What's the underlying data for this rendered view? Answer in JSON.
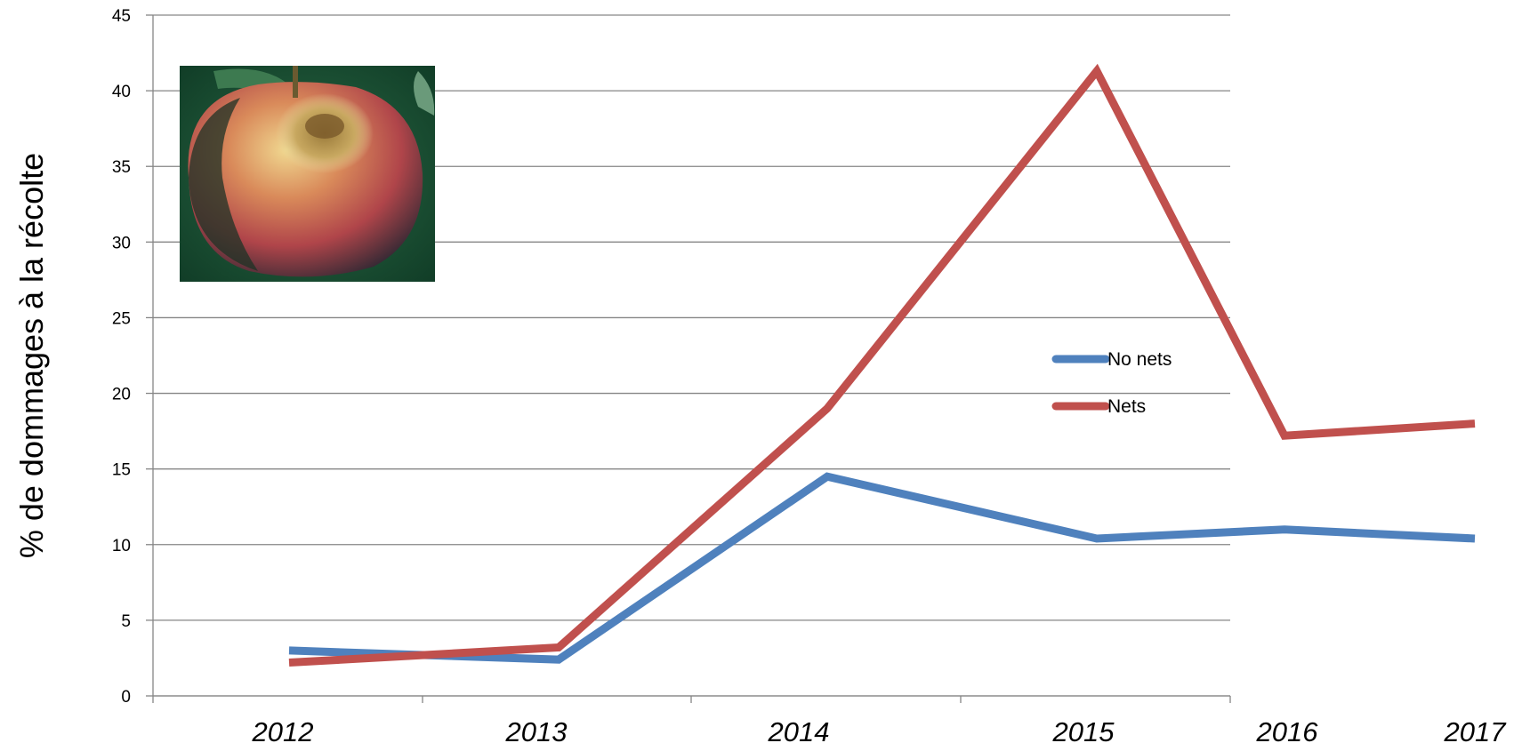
{
  "chart_data": {
    "type": "line",
    "ylabel": "% de dommages à la récolte",
    "xlabel": "",
    "ylim": [
      0,
      45
    ],
    "yticks": [
      0,
      5,
      10,
      15,
      20,
      25,
      30,
      35,
      40,
      45
    ],
    "categories": [
      "2012",
      "2013",
      "2014",
      "2015",
      "2016",
      "2017"
    ],
    "grid": "horizontal",
    "legend_position": "center-right",
    "series": [
      {
        "name": "No nets",
        "color": "#4f81bd",
        "values": [
          3.0,
          2.4,
          14.5,
          10.4,
          11.0,
          10.4
        ]
      },
      {
        "name": "Nets",
        "color": "#c0504d",
        "values": [
          2.2,
          3.2,
          19.0,
          41.3,
          17.2,
          18.0
        ]
      }
    ],
    "inset_image": "damaged-apple-photo"
  }
}
